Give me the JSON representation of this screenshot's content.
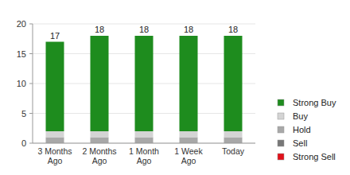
{
  "chart_data": {
    "type": "bar",
    "stacked": true,
    "grid": true,
    "legend": "right",
    "categories": [
      "3 Months Ago",
      "2 Months Ago",
      "1 Month Ago",
      "1 Week Ago",
      "Today"
    ],
    "series": [
      {
        "name": "Strong Buy",
        "color": "#1e8c1e",
        "values": [
          15,
          16,
          16,
          16,
          16
        ]
      },
      {
        "name": "Buy",
        "color": "#d4d4d4",
        "values": [
          1,
          1,
          1,
          1,
          1
        ]
      },
      {
        "name": "Hold",
        "color": "#a8a8a8",
        "values": [
          1,
          1,
          1,
          1,
          1
        ]
      },
      {
        "name": "Sell",
        "color": "#777777",
        "values": [
          0,
          0,
          0,
          0,
          0
        ]
      },
      {
        "name": "Strong Sell",
        "color": "#e0101a",
        "values": [
          0,
          0,
          0,
          0,
          0
        ]
      }
    ],
    "totals": [
      17,
      18,
      18,
      18,
      18
    ],
    "ylim": [
      0,
      20
    ],
    "yticks": [
      0,
      5,
      10,
      15,
      20
    ]
  }
}
